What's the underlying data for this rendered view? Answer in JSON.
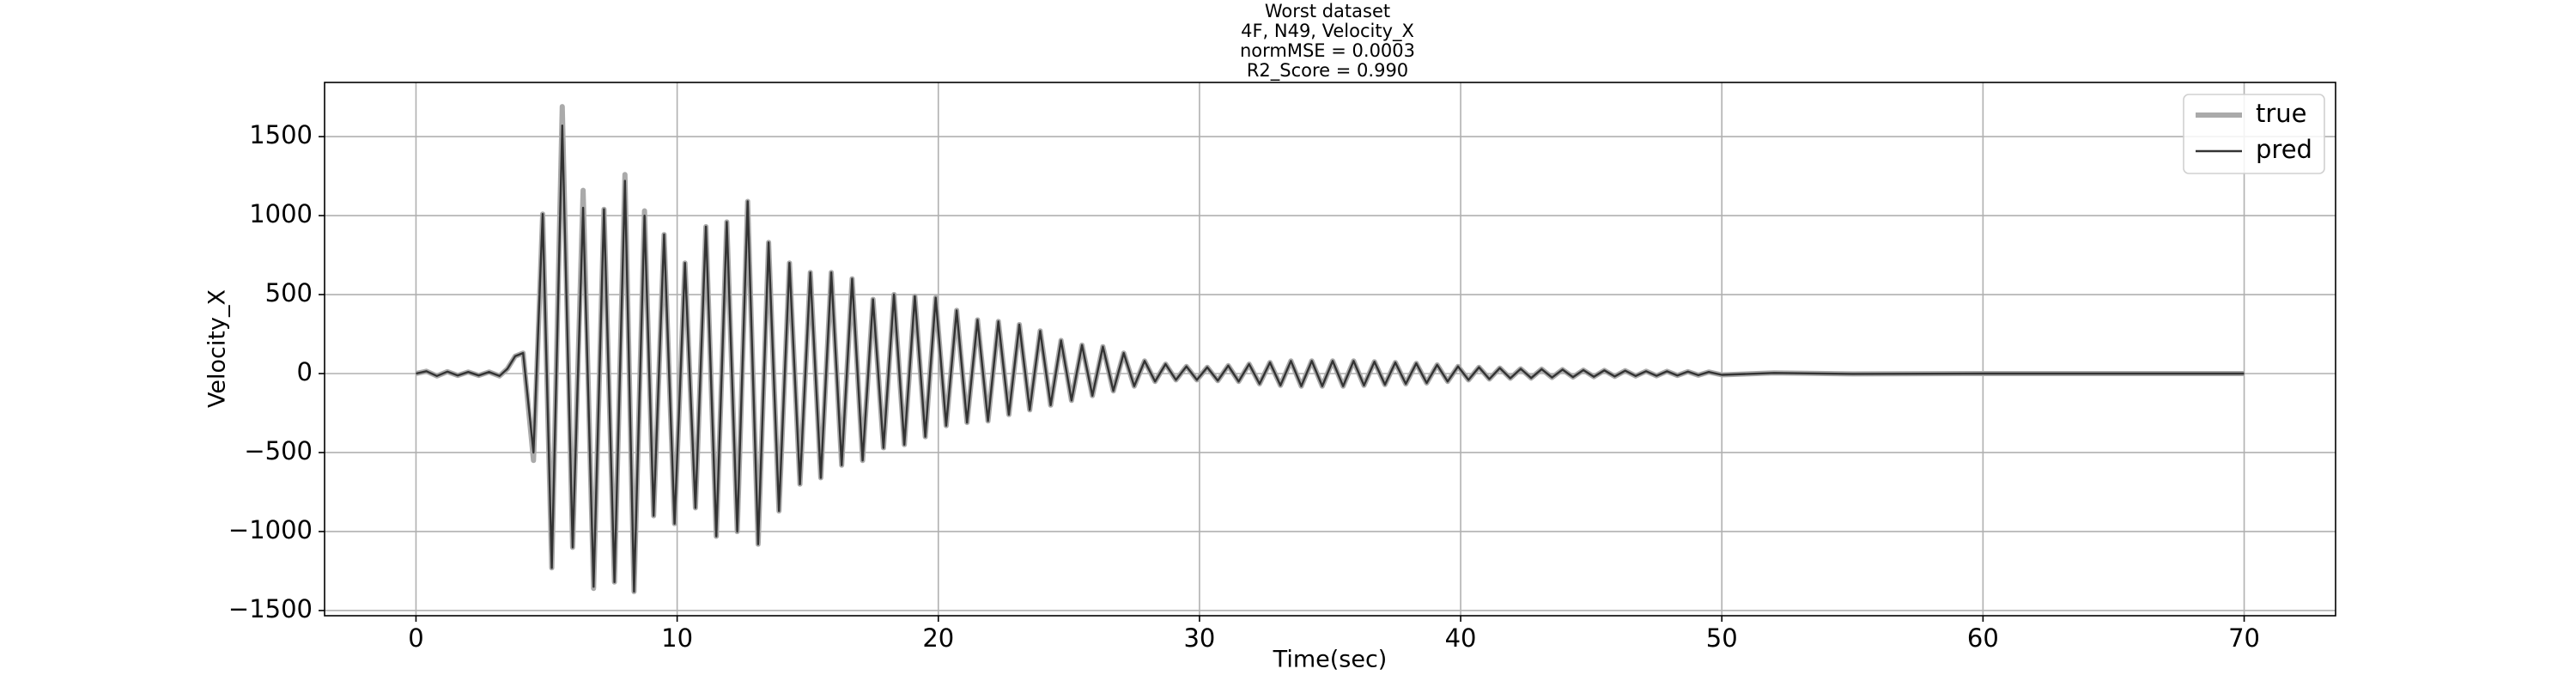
{
  "chart_data": {
    "type": "line",
    "title": [
      "Worst dataset",
      "4F, N49, Velocity_X",
      "normMSE = 0.0003",
      "R2_Score = 0.990"
    ],
    "xlabel": "Time(sec)",
    "ylabel": "Velocity_X",
    "xlim": [
      -3.5,
      73.5
    ],
    "ylim": [
      -1533,
      1843
    ],
    "xticks": [
      0,
      10,
      20,
      30,
      40,
      50,
      60,
      70
    ],
    "yticks": [
      {
        "value": -1500,
        "label": "−1500"
      },
      {
        "value": -1000,
        "label": "−1000"
      },
      {
        "value": -500,
        "label": "−500"
      },
      0,
      500,
      1000,
      1500
    ],
    "grid": true,
    "legend": "upper right",
    "x": [
      0,
      0.4,
      0.8,
      1.2,
      1.6,
      2.0,
      2.4,
      2.8,
      3.2,
      3.5,
      3.8,
      4.1,
      4.5,
      4.85,
      5.2,
      5.6,
      6.0,
      6.4,
      6.8,
      7.2,
      7.6,
      8.0,
      8.35,
      8.75,
      9.1,
      9.5,
      9.9,
      10.3,
      10.7,
      11.1,
      11.5,
      11.9,
      12.3,
      12.7,
      13.1,
      13.5,
      13.9,
      14.3,
      14.7,
      15.1,
      15.5,
      15.9,
      16.3,
      16.7,
      17.1,
      17.5,
      17.9,
      18.3,
      18.7,
      19.1,
      19.5,
      19.9,
      20.3,
      20.7,
      21.1,
      21.5,
      21.9,
      22.3,
      22.7,
      23.1,
      23.5,
      23.9,
      24.3,
      24.7,
      25.1,
      25.5,
      25.9,
      26.3,
      26.7,
      27.1,
      27.5,
      27.9,
      28.3,
      28.7,
      29.1,
      29.5,
      29.9,
      30.3,
      30.7,
      31.1,
      31.5,
      31.9,
      32.3,
      32.7,
      33.1,
      33.5,
      33.9,
      34.3,
      34.7,
      35.1,
      35.5,
      35.9,
      36.3,
      36.7,
      37.1,
      37.5,
      37.9,
      38.3,
      38.7,
      39.1,
      39.5,
      39.9,
      40.3,
      40.7,
      41.1,
      41.5,
      41.9,
      42.3,
      42.7,
      43.1,
      43.5,
      43.9,
      44.3,
      44.7,
      45.1,
      45.5,
      45.9,
      46.3,
      46.7,
      47.1,
      47.5,
      47.9,
      48.3,
      48.7,
      49.1,
      49.5,
      50,
      52,
      55,
      60,
      65,
      70
    ],
    "series": [
      {
        "name": "true",
        "color": "#aaaaaa",
        "values": [
          0,
          15,
          -15,
          12,
          -12,
          10,
          -12,
          10,
          -15,
          30,
          110,
          130,
          -550,
          1010,
          -1230,
          1690,
          -1100,
          1160,
          -1360,
          1040,
          -1320,
          1260,
          -1380,
          1030,
          -900,
          880,
          -950,
          700,
          -850,
          930,
          -1030,
          960,
          -1000,
          1090,
          -1080,
          830,
          -870,
          700,
          -700,
          640,
          -660,
          640,
          -580,
          600,
          -550,
          470,
          -470,
          500,
          -450,
          490,
          -400,
          480,
          -330,
          400,
          -310,
          340,
          -300,
          330,
          -260,
          310,
          -230,
          270,
          -200,
          210,
          -170,
          180,
          -140,
          170,
          -110,
          130,
          -80,
          80,
          -50,
          60,
          -40,
          45,
          -40,
          40,
          -45,
          50,
          -50,
          60,
          -65,
          70,
          -75,
          80,
          -80,
          80,
          -80,
          80,
          -80,
          80,
          -75,
          75,
          -70,
          70,
          -65,
          65,
          -60,
          55,
          -50,
          45,
          -40,
          40,
          -35,
          35,
          -30,
          30,
          -28,
          28,
          -25,
          25,
          -22,
          22,
          -20,
          20,
          -18,
          18,
          -15,
          15,
          -14,
          14,
          -12,
          12,
          -10,
          10,
          -8,
          4,
          -2,
          0,
          0,
          0
        ]
      },
      {
        "name": "pred",
        "color": "#333333",
        "values": [
          0,
          15,
          -15,
          12,
          -12,
          10,
          -12,
          10,
          -15,
          30,
          110,
          130,
          -500,
          1010,
          -1230,
          1570,
          -1100,
          1050,
          -1350,
          1040,
          -1320,
          1220,
          -1380,
          1000,
          -900,
          880,
          -950,
          700,
          -850,
          930,
          -1030,
          960,
          -1000,
          1090,
          -1080,
          830,
          -870,
          700,
          -700,
          640,
          -660,
          640,
          -580,
          600,
          -550,
          470,
          -470,
          500,
          -450,
          490,
          -400,
          480,
          -330,
          400,
          -310,
          340,
          -300,
          330,
          -260,
          310,
          -230,
          270,
          -200,
          210,
          -170,
          180,
          -140,
          170,
          -110,
          130,
          -80,
          80,
          -50,
          60,
          -40,
          45,
          -40,
          40,
          -45,
          50,
          -50,
          60,
          -65,
          70,
          -75,
          80,
          -80,
          80,
          -80,
          80,
          -80,
          80,
          -75,
          75,
          -70,
          70,
          -65,
          65,
          -60,
          55,
          -50,
          45,
          -40,
          40,
          -35,
          35,
          -30,
          30,
          -28,
          28,
          -25,
          25,
          -22,
          22,
          -20,
          20,
          -18,
          18,
          -15,
          15,
          -14,
          14,
          -12,
          12,
          -10,
          10,
          -8,
          4,
          -2,
          0,
          0,
          0
        ]
      }
    ]
  }
}
